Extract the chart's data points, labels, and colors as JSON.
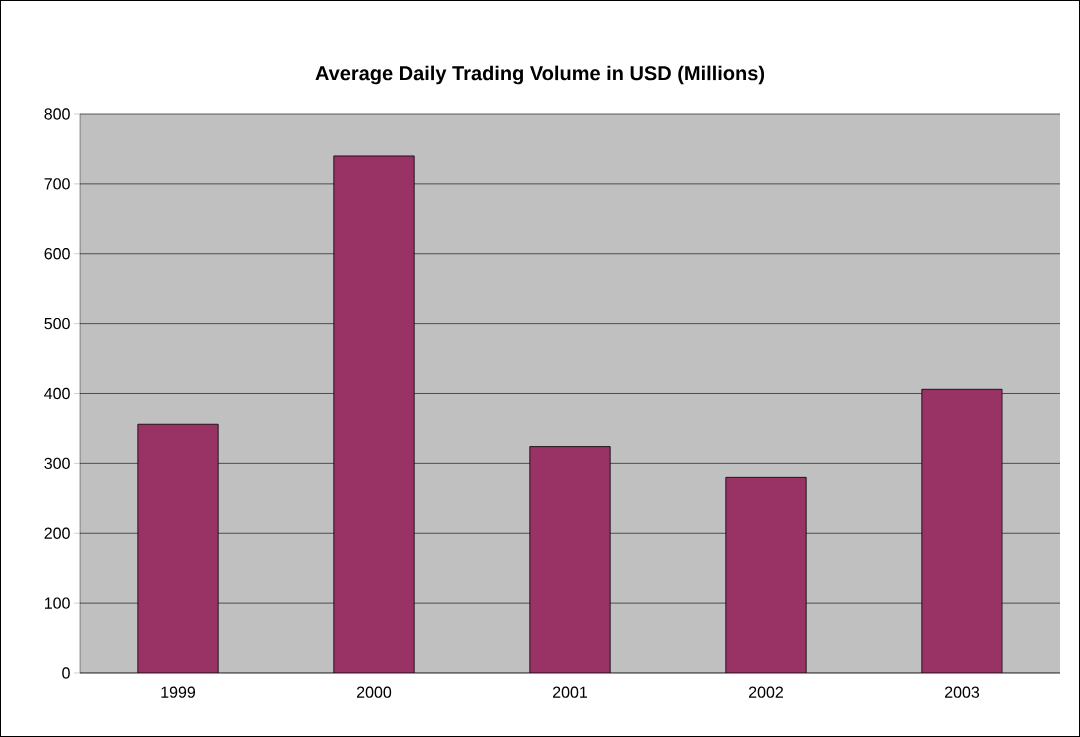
{
  "chart_data": {
    "type": "bar",
    "title": "Average Daily Trading Volume in USD (Millions)",
    "categories": [
      "1999",
      "2000",
      "2001",
      "2002",
      "2003"
    ],
    "values": [
      356,
      740,
      324,
      280,
      406
    ],
    "color": "#993366",
    "ylim": [
      0,
      800
    ],
    "yticks": [
      0,
      100,
      200,
      300,
      400,
      500,
      600,
      700,
      800
    ],
    "grid": "y"
  }
}
